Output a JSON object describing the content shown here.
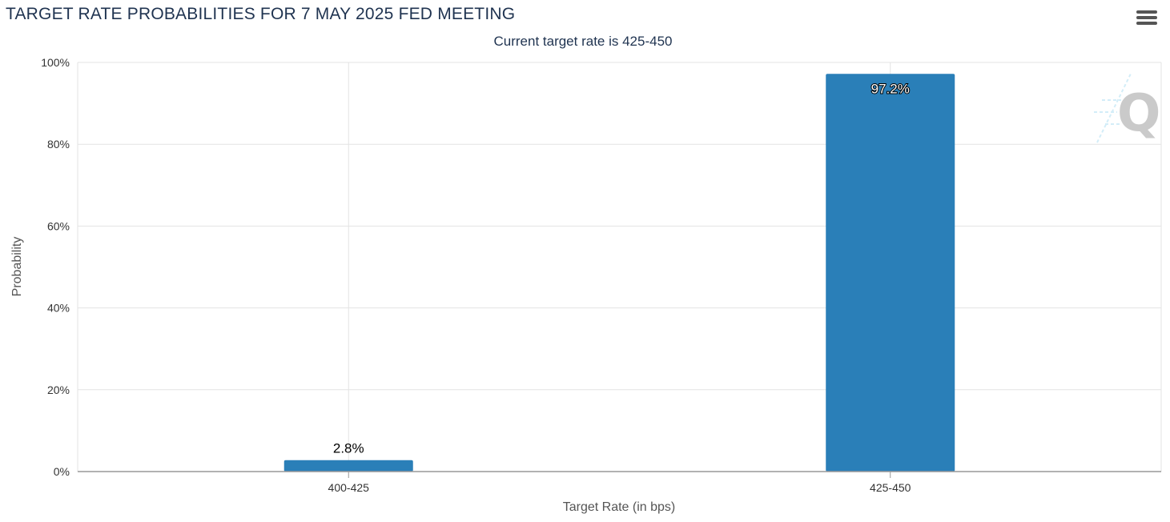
{
  "header": {
    "title": "TARGET RATE PROBABILITIES FOR 7 MAY 2025 FED MEETING",
    "subtitle": "Current target rate is 425-450",
    "menu_icon": "hamburger-menu-icon"
  },
  "colors": {
    "bar": "#2a7fb8",
    "grid": "#e3e3e3",
    "axis": "#999999",
    "text": "#333333"
  },
  "chart_data": {
    "type": "bar",
    "categories": [
      "400-425",
      "425-450"
    ],
    "values": [
      2.8,
      97.2
    ],
    "data_labels": [
      "2.8%",
      "97.2%"
    ],
    "xlabel": "Target Rate (in bps)",
    "ylabel": "Probability",
    "ylim": [
      0,
      100
    ],
    "yticks": [
      0,
      20,
      40,
      60,
      80,
      100
    ],
    "ytick_labels": [
      "0%",
      "20%",
      "40%",
      "60%",
      "80%",
      "100%"
    ],
    "grid": true,
    "legend": "none"
  }
}
